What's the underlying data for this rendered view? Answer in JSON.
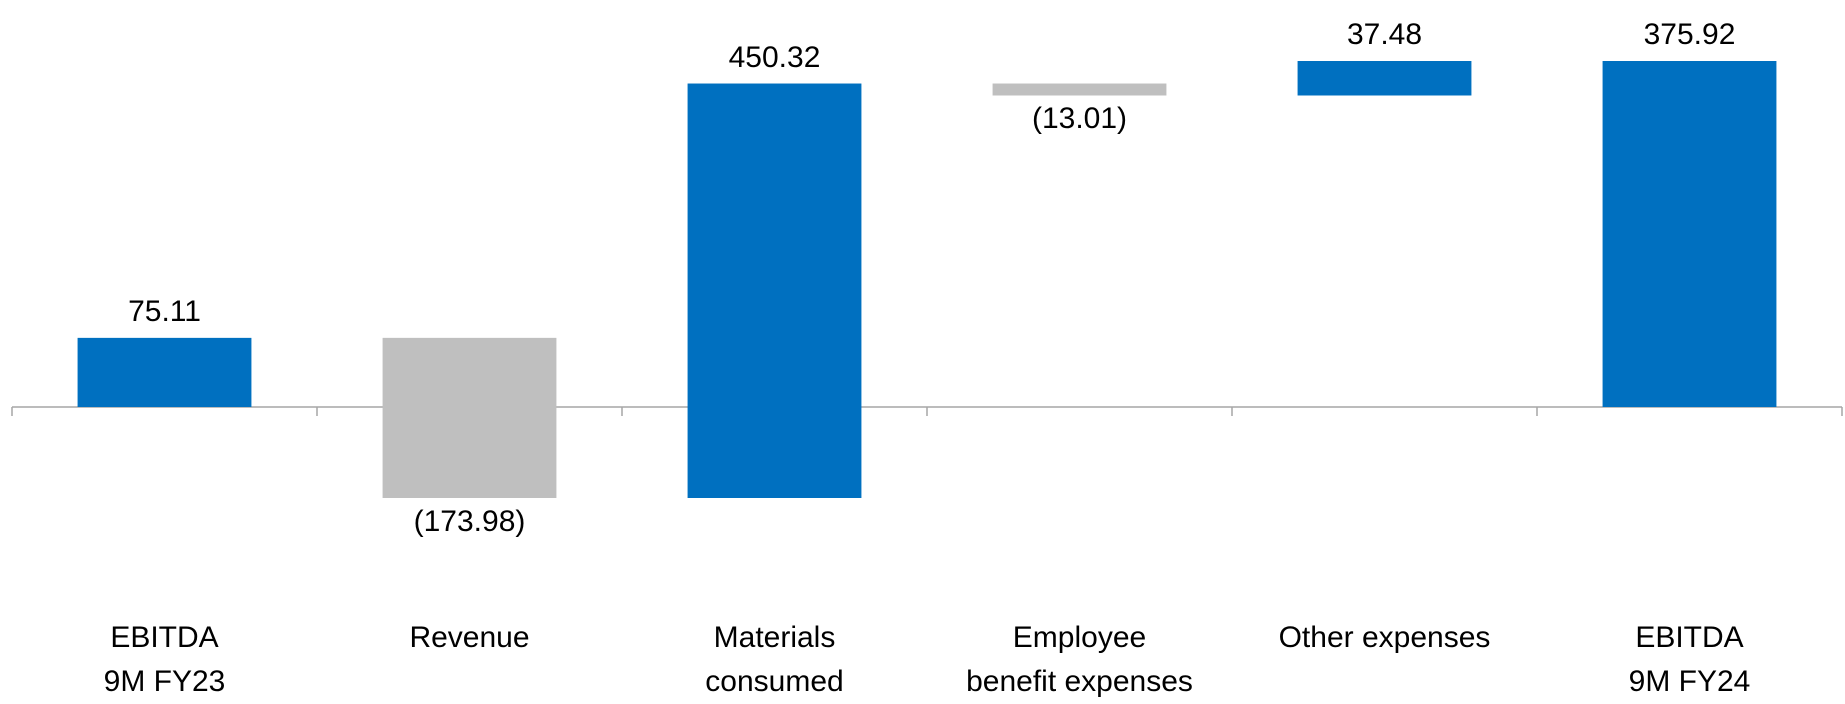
{
  "chart_data": {
    "type": "waterfall",
    "categories": [
      "EBITDA\n9M FY23",
      "Revenue",
      "Materials\nconsumed",
      "Employee\nbenefit expenses",
      "Other expenses",
      "EBITDA\n9M FY24"
    ],
    "values": [
      75.11,
      -173.98,
      450.32,
      -13.01,
      37.48,
      375.92
    ],
    "value_labels": [
      "75.11",
      "(173.98)",
      "450.32",
      "(13.01)",
      "37.48",
      "375.92"
    ],
    "color": "#0070c0",
    "negative_color": "#bfbfbf"
  }
}
